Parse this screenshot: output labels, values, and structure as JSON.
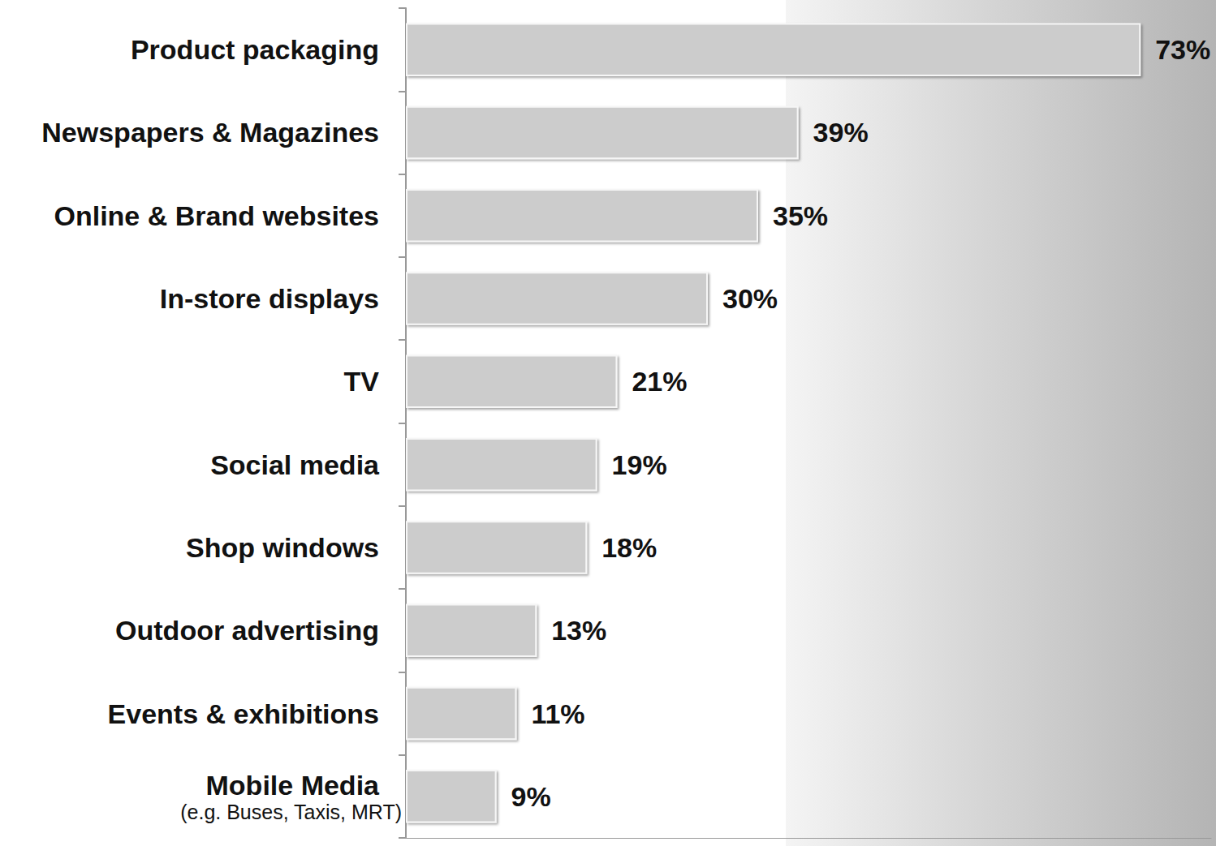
{
  "chart_data": {
    "type": "bar",
    "orientation": "horizontal",
    "categories": [
      "Product packaging",
      "Newspapers & Magazines",
      "Online & Brand websites",
      "In-store displays",
      "TV",
      "Social media",
      "Shop windows",
      "Outdoor advertising",
      "Events & exhibitions",
      "Mobile Media\n(e.g. Buses, Taxis, MRT)"
    ],
    "values": [
      73,
      39,
      35,
      30,
      21,
      19,
      18,
      13,
      11,
      9
    ],
    "value_labels": [
      "73%",
      "39%",
      "35%",
      "30%",
      "21%",
      "19%",
      "18%",
      "13%",
      "11%",
      "9%"
    ],
    "color": "#cccccc",
    "xlim": [
      0,
      80
    ],
    "xticks": [],
    "grid": false,
    "data_labels": true,
    "tick_labels": "y"
  }
}
